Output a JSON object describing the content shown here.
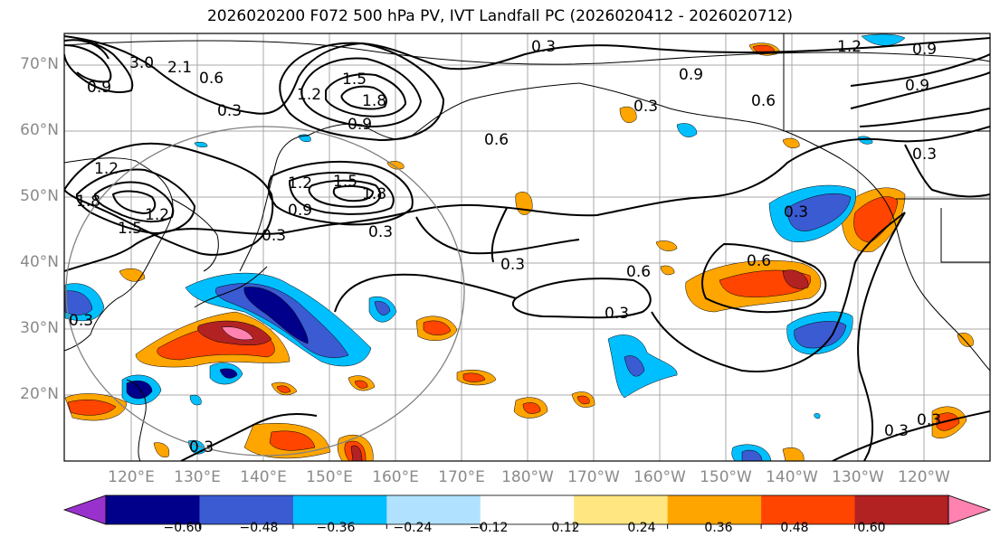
{
  "title": "2026020200 F072 500 hPa PV, IVT Landfall PC (2026020412 - 2026020712)",
  "lat_labels": [
    "70°N",
    "60°N",
    "50°N",
    "40°N",
    "30°N",
    "20°N"
  ],
  "lon_labels": [
    "120°E",
    "130°E",
    "140°E",
    "150°E",
    "160°E",
    "170°E",
    "180°W",
    "170°W",
    "160°W",
    "150°W",
    "140°W",
    "130°W",
    "120°W"
  ],
  "colorbar": {
    "ticks": [
      "−0.60",
      "−0.48",
      "−0.36",
      "−0.24",
      "−0.12",
      "0.12",
      "0.24",
      "0.36",
      "0.48",
      "0.60"
    ],
    "colors": [
      "#9932cc",
      "#00008b",
      "#3a5bd2",
      "#00bfff",
      "#b0e2ff",
      "#ffffff",
      "#ffe680",
      "#ffa500",
      "#ff4500",
      "#b22222",
      "#ff82b0"
    ]
  },
  "contour_labels": {
    "c1": "0.3",
    "c2": "1.2",
    "c3": "0.9",
    "c4": "3.0",
    "c5": "2.1",
    "c6": "0.6",
    "c7": "0.3",
    "c8": "1.5",
    "c9": "1.8",
    "c10": "0.9",
    "c11": "1.2",
    "c12": "0.9",
    "c13": "0.6",
    "c14": "0.3",
    "c15": "0.6",
    "c16": "0.3",
    "c17": "1.2",
    "c18": "1.5",
    "c19": "1.8",
    "c20": "0.9",
    "c21": "0.3",
    "c22": "0.3",
    "c23": "0.3",
    "c24": "0.6",
    "c25": "0.6",
    "c26": "0.3",
    "c27": "0.3",
    "c28": "0.3",
    "c29": "0.3",
    "c30": "0.3",
    "c31": "1.2",
    "c32": "0.9",
    "c33": "0.9",
    "c34": "1.8",
    "c35": "1.5",
    "c36": "1.2",
    "c37": "0.3"
  }
}
